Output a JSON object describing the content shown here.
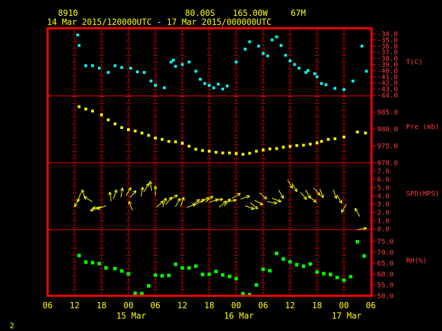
{
  "header": {
    "station": "8910",
    "lat": "80.00S",
    "lon": "165.00W",
    "elev": "67M",
    "range": "14 Mar 2015/120000UTC - 17 Mar 2015/000000UTC"
  },
  "page_number": "2",
  "colors": {
    "frame": "#ff0000",
    "temp": "#00ffff",
    "pres": "#ffff00",
    "wind": "#ffff00",
    "rh": "#00ff00",
    "text": "#ffff00",
    "ticks": "#ff3b3b"
  },
  "x_axis": {
    "hour_labels": [
      "06",
      "12",
      "18",
      "00",
      "06",
      "12",
      "18",
      "00",
      "06",
      "12",
      "18",
      "00",
      "06"
    ],
    "date_labels": [
      "15 Mar",
      "16 Mar",
      "17 Mar"
    ]
  },
  "chart_data": [
    {
      "type": "scatter",
      "ylabel": "T(C)",
      "ylim": [
        -44,
        -34
      ],
      "ytick_labels": [
        "-34.0",
        "-35.0",
        "-36.0",
        "-37.0",
        "-38.0",
        "-39.0",
        "-40.0",
        "-41.0",
        "-42.0",
        "-43.0",
        "-44.0"
      ],
      "ytick_values": [
        -34,
        -35,
        -36,
        -37,
        -38,
        -39,
        -40,
        -41,
        -42,
        -43,
        -44
      ],
      "series": [
        {
          "x": [
            12.7,
            13,
            14.5,
            16,
            17.5,
            19.5,
            21,
            22.5,
            24.5,
            26,
            27.5,
            29,
            30,
            32,
            33.5,
            34,
            34.5,
            36,
            37.5,
            39,
            40,
            41,
            42,
            43,
            44,
            45,
            46,
            48,
            50,
            51,
            53,
            54,
            55,
            56,
            57,
            58,
            59,
            60,
            61,
            62,
            63.5,
            64,
            65.5,
            66,
            67,
            68,
            70,
            72,
            74,
            76,
            77
          ],
          "y": [
            -34.2,
            -35.9,
            -39.2,
            -39.2,
            -39.6,
            -40.3,
            -39.2,
            -39.5,
            -39.6,
            -40.2,
            -40.3,
            -41.7,
            -42.4,
            -42.8,
            -38.6,
            -38.3,
            -39.3,
            -39.0,
            -38.6,
            -40.1,
            -41.4,
            -42.1,
            -42.4,
            -42.8,
            -42.2,
            -43.0,
            -42.5,
            -38.6,
            -36.5,
            -35.3,
            -36.0,
            -37.2,
            -37.6,
            -35.0,
            -34.5,
            -35.9,
            -37.5,
            -38.4,
            -39.0,
            -39.6,
            -40.3,
            -40.0,
            -40.5,
            -41.0,
            -42.1,
            -42.3,
            -42.9,
            -43.1,
            -41.7,
            -36.0,
            -40.1
          ]
        }
      ]
    },
    {
      "type": "scatter",
      "ylabel": "Pre (mb)",
      "ylim": [
        970,
        990
      ],
      "ytick_labels": [
        "985.0",
        "980.0",
        "975.0",
        "970.0"
      ],
      "ytick_values": [
        985,
        980,
        975,
        970
      ],
      "series": [
        {
          "x": [
            13,
            14.5,
            16,
            18,
            19.5,
            21,
            22.5,
            24,
            25.5,
            27,
            28.5,
            30,
            31.5,
            33,
            34.5,
            36,
            37.5,
            39,
            40.5,
            42,
            43.5,
            45,
            46.5,
            48,
            49.5,
            51,
            52.5,
            54,
            55.5,
            57,
            58.5,
            60,
            61.5,
            63,
            64.5,
            66,
            67,
            68.5,
            70,
            72,
            75,
            76.8
          ],
          "y": [
            986.6,
            985.9,
            985.3,
            984.2,
            982.7,
            981.5,
            980.4,
            979.8,
            979.4,
            978.8,
            978.1,
            977.3,
            976.9,
            976.3,
            976.2,
            975.8,
            974.9,
            974.0,
            973.6,
            973.4,
            973.1,
            972.9,
            972.9,
            972.7,
            972.5,
            972.8,
            973.4,
            973.8,
            974.1,
            974.2,
            974.6,
            974.8,
            975.1,
            975.2,
            975.5,
            975.9,
            976.3,
            976.9,
            977.1,
            977.6,
            979.1,
            978.8
          ]
        }
      ]
    },
    {
      "type": "scatter",
      "ylabel": "SPD(MPS)",
      "ylim": [
        0,
        7
      ],
      "ytick_labels": [
        "7.0",
        "6.0",
        "5.0",
        "4.0",
        "3.0",
        "2.0",
        "1.0",
        "0.0"
      ],
      "ytick_values": [
        7,
        6,
        5,
        4,
        3,
        2,
        1,
        0
      ],
      "series": [
        {
          "x": [
            12.5,
            13,
            14,
            15,
            16.5,
            17,
            18,
            20,
            21,
            22.5,
            24,
            24.5,
            25,
            27,
            28,
            29,
            30,
            31,
            32,
            33,
            34,
            35,
            36,
            38,
            39,
            40,
            41,
            42,
            43,
            44,
            45,
            46,
            47,
            48,
            50,
            51,
            52,
            53,
            54,
            56,
            57,
            58,
            60,
            61,
            63,
            64,
            65,
            66,
            67,
            70,
            71,
            72,
            75,
            76
          ],
          "y": [
            3.2,
            3.8,
            4.2,
            3.6,
            2.4,
            2.6,
            2.6,
            3.9,
            4.2,
            4.4,
            4.5,
            2.8,
            4.2,
            4.5,
            5.0,
            5.2,
            4.6,
            3.0,
            3.2,
            3.4,
            3.8,
            3.2,
            3.3,
            2.8,
            3.2,
            3.3,
            3.5,
            3.6,
            3.4,
            3.5,
            3.0,
            3.2,
            3.4,
            4.0,
            3.8,
            2.6,
            2.8,
            3.2,
            4.0,
            3.2,
            3.5,
            4.2,
            5.4,
            5.0,
            4.0,
            4.2,
            3.6,
            4.5,
            4.3,
            4.2,
            3.6,
            2.5,
            2.0,
            0.0
          ],
          "dir": [
            210,
            200,
            340,
            300,
            250,
            260,
            250,
            350,
            20,
            10,
            30,
            340,
            40,
            10,
            30,
            350,
            0,
            50,
            20,
            40,
            60,
            30,
            20,
            70,
            50,
            60,
            60,
            50,
            70,
            80,
            50,
            40,
            80,
            60,
            70,
            110,
            130,
            120,
            130,
            100,
            110,
            150,
            150,
            150,
            140,
            150,
            130,
            140,
            160,
            160,
            150,
            210,
            330,
            80
          ]
        }
      ]
    },
    {
      "type": "scatter",
      "ylabel": "RH(%)",
      "ylim": [
        50,
        75
      ],
      "ytick_labels": [
        "75.0",
        "70.0",
        "65.0",
        "60.0",
        "55.0",
        "50.0"
      ],
      "ytick_values": [
        75,
        70,
        65,
        60,
        55,
        50
      ],
      "series": [
        {
          "x": [
            13,
            14.5,
            16,
            17.5,
            19,
            21,
            22.5,
            24,
            25.5,
            27,
            28.5,
            30,
            31.5,
            33,
            34.5,
            36,
            37.5,
            39,
            40.5,
            42,
            43.5,
            45,
            46.5,
            48,
            49.5,
            51,
            52.5,
            54,
            55.5,
            57,
            58.5,
            60,
            61.5,
            63,
            64.5,
            66,
            67.5,
            69,
            70.5,
            72,
            73.5,
            75,
            76.5
          ],
          "y": [
            68.5,
            65.5,
            65.2,
            64.8,
            62.8,
            62.5,
            61.4,
            60.1,
            51.2,
            51.0,
            54.6,
            59.5,
            59.2,
            59.4,
            64.5,
            62.8,
            62.8,
            63.6,
            59.8,
            59.9,
            61.2,
            59.6,
            58.9,
            57.9,
            51.0,
            50.5,
            55.0,
            62.2,
            61.5,
            69.5,
            66.9,
            65.6,
            64.3,
            63.6,
            64.6,
            60.9,
            60.2,
            59.8,
            58.4,
            57.2,
            58.8,
            74.8,
            68.3
          ]
        }
      ]
    }
  ]
}
